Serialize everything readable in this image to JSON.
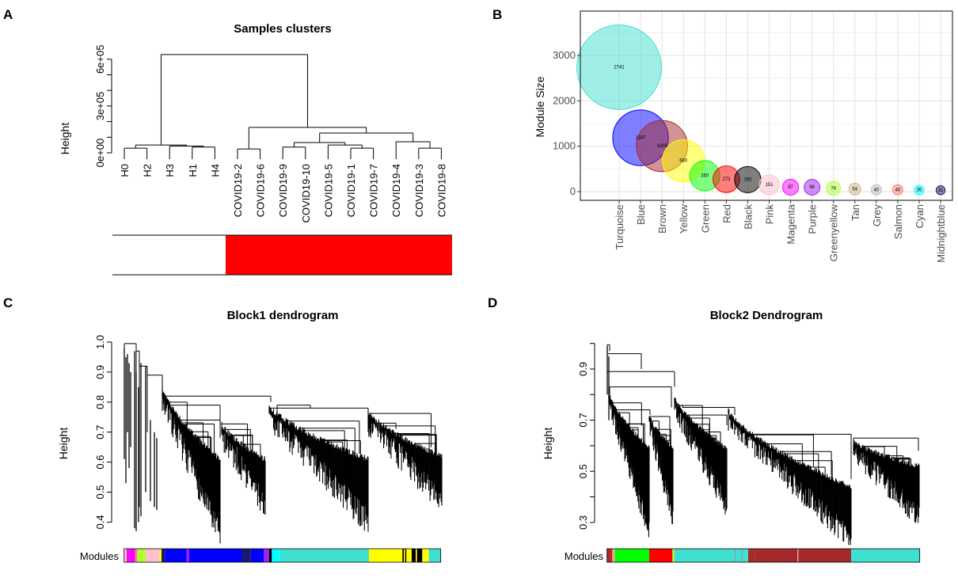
{
  "panels": {
    "a": "A",
    "b": "B",
    "c": "C",
    "d": "D"
  },
  "chart_data": [
    {
      "id": "A",
      "type": "dendrogram",
      "title": "Samples clusters",
      "ylabel": "Height",
      "y_ticks": [
        0,
        100000,
        200000,
        300000,
        400000,
        500000,
        600000
      ],
      "y_tick_labels": [
        {
          "value": 0,
          "label": "0e+00"
        },
        {
          "value": 300000,
          "label": "3e+05"
        },
        {
          "value": 600000,
          "label": "6e+05"
        }
      ],
      "leaves": [
        "H0",
        "H2",
        "H3",
        "H1",
        "H4",
        "COVID19-2",
        "COVID19-6",
        "COVID19-9",
        "COVID19-10",
        "COVID19-5",
        "COVID19-1",
        "COVID19-7",
        "COVID19-4",
        "COVID19-3",
        "COVID19-8"
      ],
      "tree": {
        "h": 630000,
        "c": [
          {
            "h": 50000,
            "c": [
              {
                "h": 30000,
                "c": [
                  "H0",
                  "H2"
                ]
              },
              {
                "h": 43000,
                "c": [
                  "H3",
                  {
                    "h": 37000,
                    "c": [
                      "H1",
                      "H4"
                    ]
                  }
                ]
              }
            ]
          },
          {
            "h": 163000,
            "c": [
              {
                "h": 25000,
                "c": [
                  "COVID19-2",
                  "COVID19-6"
                ]
              },
              {
                "h": 127000,
                "c": [
                  {
                    "h": 66000,
                    "c": [
                      {
                        "h": 37000,
                        "c": [
                          "COVID19-9",
                          "COVID19-10"
                        ]
                      },
                      {
                        "h": 50000,
                        "c": [
                          "COVID19-5",
                          {
                            "h": 30000,
                            "c": [
                              "COVID19-1",
                              "COVID19-7"
                            ]
                          }
                        ]
                      }
                    ]
                  },
                  {
                    "h": 71000,
                    "c": [
                      "COVID19-4",
                      {
                        "h": 30000,
                        "c": [
                          "COVID19-3",
                          "COVID19-8"
                        ]
                      }
                    ]
                  }
                ]
              }
            ]
          }
        ]
      },
      "trait_bar": {
        "healthy_color": "#ffffff",
        "covid_color": "#ff0000"
      }
    },
    {
      "id": "B",
      "type": "scatter",
      "subtype": "bubble",
      "ylabel": "Module Size",
      "ylim": [
        -200,
        3950
      ],
      "y_ticks": [
        0,
        1000,
        2000,
        3000
      ],
      "grid": true,
      "categories": [
        "Turquoise",
        "Blue",
        "Brown",
        "Yellow",
        "Green",
        "Red",
        "Black",
        "Pink",
        "Magenta",
        "Purple",
        "Greenyellow",
        "Tan",
        "Grey",
        "Salmon",
        "Cyan",
        "Midnightblue"
      ],
      "values": [
        2741,
        1187,
        1005,
        680,
        350,
        273,
        265,
        151,
        97,
        96,
        74,
        54,
        40,
        40,
        35,
        31
      ],
      "colors": [
        "#40e0d0",
        "#0000ff",
        "#a52a2a",
        "#ffff00",
        "#00ff00",
        "#ff0000",
        "#000000",
        "#ffc0cb",
        "#ff00ff",
        "#a020f0",
        "#adff2f",
        "#d2b48c",
        "#bebebe",
        "#fa8072",
        "#00ffff",
        "#191970"
      ]
    },
    {
      "id": "C",
      "type": "dendrogram",
      "title": "Block1 dendrogram",
      "ylabel": "Height",
      "y_ticks": [
        0.4,
        0.5,
        0.6,
        0.7,
        0.8,
        0.9,
        1.0
      ],
      "y_tick_labels": [
        "0.4",
        "0.5",
        "0.6",
        "0.7",
        "0.8",
        "0.9",
        "1.0"
      ],
      "color_bar_label": "Modules"
    },
    {
      "id": "D",
      "type": "dendrogram",
      "title": "Block2 Dendrogram",
      "ylabel": "Height",
      "y_ticks": [
        0.3,
        0.4,
        0.5,
        0.6,
        0.7,
        0.8,
        0.9
      ],
      "y_tick_labels": [
        {
          "value": 0.3,
          "label": "0.3"
        },
        {
          "value": 0.5,
          "label": "0.5"
        },
        {
          "value": 0.7,
          "label": "0.7"
        },
        {
          "value": 0.9,
          "label": "0.9"
        }
      ],
      "color_bar_label": "Modules"
    }
  ]
}
